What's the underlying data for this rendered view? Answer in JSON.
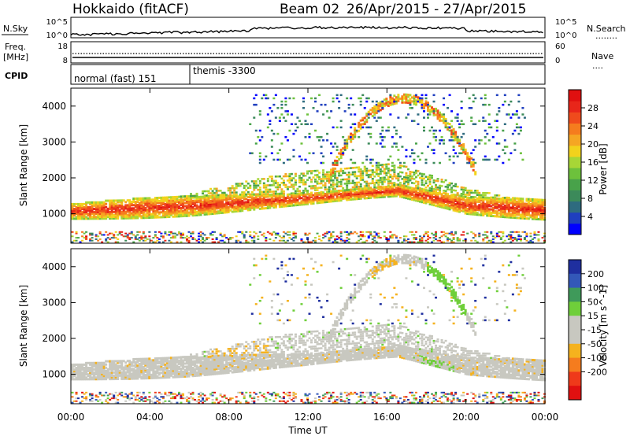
{
  "header": {
    "station": "Hokkaido (fitACF)",
    "beam": "Beam 02",
    "date_range": "26/Apr/2015 - 27/Apr/2015"
  },
  "noise_panel": {
    "left_label": "N.Sky",
    "right_label": "N.Search",
    "left_ticks": [
      "10^5",
      "10^0"
    ],
    "right_ticks": [
      "10^5",
      "10^0"
    ],
    "right_legend_line": "........"
  },
  "freq_panel": {
    "left_label_1": "Freq.",
    "left_label_2": "[MHz]",
    "right_label": "Nave",
    "left_ticks": [
      "18",
      "8"
    ],
    "right_ticks": [
      "60",
      "0"
    ],
    "right_legend_line": "...."
  },
  "cpid_panel": {
    "label": "CPID",
    "programs": [
      {
        "name": "normal (fast) 151",
        "start_hour": 0
      },
      {
        "name": "themis -3300",
        "start_hour": 6
      }
    ]
  },
  "x_axis": {
    "label": "Time UT",
    "ticks": [
      "00:00",
      "04:00",
      "08:00",
      "12:00",
      "16:00",
      "20:00",
      "00:00"
    ],
    "hour_range": [
      0,
      24
    ]
  },
  "chart_data": [
    {
      "type": "heatmap",
      "title": "",
      "parameter": "Power",
      "ylabel": "Slant Range [km]",
      "yticks": [
        "1000",
        "2000",
        "3000",
        "4000"
      ],
      "ylim_km": [
        180,
        4500
      ],
      "colorbar": {
        "label": "Power [dB]",
        "ticks": [
          "4",
          "8",
          "12",
          "16",
          "20",
          "24",
          "28"
        ],
        "range": [
          0,
          32
        ],
        "colors": [
          "#0000ff",
          "#1f3fbf",
          "#2e6b7f",
          "#3c8a5a",
          "#48a24a",
          "#6dc13c",
          "#a7d636",
          "#f2d21c",
          "#f5a623",
          "#f57c1e",
          "#ef4b1c",
          "#e8261a",
          "#e01010"
        ]
      }
    },
    {
      "type": "heatmap",
      "title": "",
      "parameter": "Velocity",
      "ylabel": "Slant Range [km]",
      "yticks": [
        "1000",
        "2000",
        "3000",
        "4000"
      ],
      "ylim_km": [
        180,
        4500
      ],
      "colorbar": {
        "label": "Velocity [m s^-1]",
        "ticks": [
          "200",
          "100",
          "50",
          "15",
          "-15",
          "-50",
          "-100",
          "-200"
        ],
        "colors": [
          "#1f2f9f",
          "#3358b8",
          "#3f9a5a",
          "#6fcf3a",
          "#c8c8c0",
          "#c8c8c0",
          "#f5b21e",
          "#f57c1e",
          "#ef3a1a",
          "#e01010"
        ]
      }
    }
  ]
}
